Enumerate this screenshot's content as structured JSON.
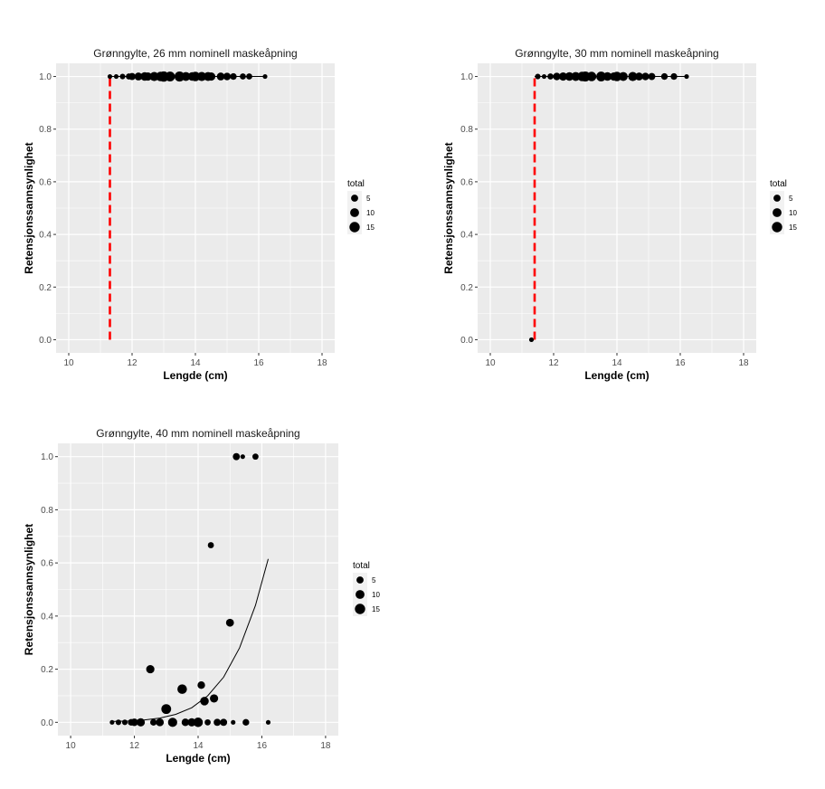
{
  "chart_data": [
    {
      "type": "scatter",
      "title": "Grønngylte, 26 mm nominell maskeåpning",
      "xlabel": "Lengde (cm)",
      "ylabel": "Retensjonssannsynlighet",
      "xlim": [
        9.6,
        18.4
      ],
      "ylim": [
        -0.05,
        1.05
      ],
      "xticks": [
        10,
        12,
        14,
        16,
        18
      ],
      "yticks": [
        0.0,
        0.2,
        0.4,
        0.6,
        0.8,
        1.0
      ],
      "points": [
        {
          "x": 11.3,
          "y": 1.0,
          "total": 1
        },
        {
          "x": 11.5,
          "y": 1.0,
          "total": 1
        },
        {
          "x": 11.7,
          "y": 1.0,
          "total": 2
        },
        {
          "x": 11.9,
          "y": 1.0,
          "total": 3
        },
        {
          "x": 12.0,
          "y": 1.0,
          "total": 5
        },
        {
          "x": 12.2,
          "y": 1.0,
          "total": 7
        },
        {
          "x": 12.4,
          "y": 1.0,
          "total": 9
        },
        {
          "x": 12.5,
          "y": 1.0,
          "total": 8
        },
        {
          "x": 12.7,
          "y": 1.0,
          "total": 11
        },
        {
          "x": 12.9,
          "y": 1.0,
          "total": 12
        },
        {
          "x": 13.0,
          "y": 1.0,
          "total": 15
        },
        {
          "x": 13.2,
          "y": 1.0,
          "total": 13
        },
        {
          "x": 13.5,
          "y": 1.0,
          "total": 14
        },
        {
          "x": 13.7,
          "y": 1.0,
          "total": 10
        },
        {
          "x": 13.9,
          "y": 1.0,
          "total": 9
        },
        {
          "x": 14.0,
          "y": 1.0,
          "total": 12
        },
        {
          "x": 14.2,
          "y": 1.0,
          "total": 11
        },
        {
          "x": 14.4,
          "y": 1.0,
          "total": 10
        },
        {
          "x": 14.5,
          "y": 1.0,
          "total": 8
        },
        {
          "x": 14.8,
          "y": 1.0,
          "total": 7
        },
        {
          "x": 15.0,
          "y": 1.0,
          "total": 6
        },
        {
          "x": 15.2,
          "y": 1.0,
          "total": 4
        },
        {
          "x": 15.5,
          "y": 1.0,
          "total": 3
        },
        {
          "x": 15.7,
          "y": 1.0,
          "total": 3
        },
        {
          "x": 16.2,
          "y": 1.0,
          "total": 1
        }
      ],
      "curve": [
        {
          "x": 11.3,
          "y": 1.0
        },
        {
          "x": 16.2,
          "y": 1.0
        }
      ],
      "dashed_line": {
        "x": 11.3,
        "y_from": 0.0,
        "y_to": 1.0,
        "color": "#ff0000"
      },
      "legend": {
        "title": "total",
        "entries": [
          "5",
          "10",
          "15"
        ],
        "sizes": [
          5,
          10,
          15
        ],
        "position": "right"
      }
    },
    {
      "type": "scatter",
      "title": "Grønngylte, 30 mm nominell maskeåpning",
      "xlabel": "Lengde (cm)",
      "ylabel": "Retensjonssannsynlighet",
      "xlim": [
        9.6,
        18.4
      ],
      "ylim": [
        -0.05,
        1.05
      ],
      "xticks": [
        10,
        12,
        14,
        16,
        18
      ],
      "yticks": [
        0.0,
        0.2,
        0.4,
        0.6,
        0.8,
        1.0
      ],
      "points": [
        {
          "x": 11.3,
          "y": 0.0,
          "total": 1
        },
        {
          "x": 11.5,
          "y": 1.0,
          "total": 2
        },
        {
          "x": 11.7,
          "y": 1.0,
          "total": 1
        },
        {
          "x": 11.9,
          "y": 1.0,
          "total": 3
        },
        {
          "x": 12.1,
          "y": 1.0,
          "total": 6
        },
        {
          "x": 12.3,
          "y": 1.0,
          "total": 8
        },
        {
          "x": 12.5,
          "y": 1.0,
          "total": 9
        },
        {
          "x": 12.7,
          "y": 1.0,
          "total": 10
        },
        {
          "x": 12.9,
          "y": 1.0,
          "total": 12
        },
        {
          "x": 13.0,
          "y": 1.0,
          "total": 14
        },
        {
          "x": 13.2,
          "y": 1.0,
          "total": 12
        },
        {
          "x": 13.5,
          "y": 1.0,
          "total": 13
        },
        {
          "x": 13.7,
          "y": 1.0,
          "total": 9
        },
        {
          "x": 13.9,
          "y": 1.0,
          "total": 8
        },
        {
          "x": 14.0,
          "y": 1.0,
          "total": 12
        },
        {
          "x": 14.2,
          "y": 1.0,
          "total": 10
        },
        {
          "x": 14.5,
          "y": 1.0,
          "total": 11
        },
        {
          "x": 14.7,
          "y": 1.0,
          "total": 7
        },
        {
          "x": 14.9,
          "y": 1.0,
          "total": 6
        },
        {
          "x": 15.1,
          "y": 1.0,
          "total": 5
        },
        {
          "x": 15.5,
          "y": 1.0,
          "total": 4
        },
        {
          "x": 15.8,
          "y": 1.0,
          "total": 4
        },
        {
          "x": 16.2,
          "y": 1.0,
          "total": 1
        }
      ],
      "curve": [
        {
          "x": 11.4,
          "y": 1.0
        },
        {
          "x": 16.2,
          "y": 1.0
        }
      ],
      "dashed_line": {
        "x": 11.4,
        "y_from": 0.0,
        "y_to": 1.0,
        "color": "#ff0000"
      },
      "legend": {
        "title": "total",
        "entries": [
          "5",
          "10",
          "15"
        ],
        "sizes": [
          5,
          10,
          15
        ],
        "position": "right"
      }
    },
    {
      "type": "scatter",
      "title": "Grønngylte, 40 mm nominell maskeåpning",
      "xlabel": "Lengde (cm)",
      "ylabel": "Retensjonssannsynlighet",
      "xlim": [
        9.6,
        18.4
      ],
      "ylim": [
        -0.05,
        1.05
      ],
      "xticks": [
        10,
        12,
        14,
        16,
        18
      ],
      "yticks": [
        0.0,
        0.2,
        0.4,
        0.6,
        0.8,
        1.0
      ],
      "points": [
        {
          "x": 11.3,
          "y": 0.0,
          "total": 1
        },
        {
          "x": 11.5,
          "y": 0.0,
          "total": 2
        },
        {
          "x": 11.7,
          "y": 0.0,
          "total": 2
        },
        {
          "x": 11.9,
          "y": 0.0,
          "total": 4
        },
        {
          "x": 12.0,
          "y": 0.0,
          "total": 6
        },
        {
          "x": 12.2,
          "y": 0.0,
          "total": 8
        },
        {
          "x": 12.5,
          "y": 0.2,
          "total": 8
        },
        {
          "x": 12.6,
          "y": 0.0,
          "total": 4
        },
        {
          "x": 12.8,
          "y": 0.0,
          "total": 7
        },
        {
          "x": 13.0,
          "y": 0.05,
          "total": 13
        },
        {
          "x": 13.2,
          "y": 0.0,
          "total": 11
        },
        {
          "x": 13.5,
          "y": 0.125,
          "total": 12
        },
        {
          "x": 13.6,
          "y": 0.0,
          "total": 6
        },
        {
          "x": 13.8,
          "y": 0.0,
          "total": 8
        },
        {
          "x": 14.0,
          "y": 0.0,
          "total": 12
        },
        {
          "x": 14.1,
          "y": 0.14,
          "total": 6
        },
        {
          "x": 14.2,
          "y": 0.08,
          "total": 9
        },
        {
          "x": 14.3,
          "y": 0.0,
          "total": 3
        },
        {
          "x": 14.4,
          "y": 0.6667,
          "total": 3
        },
        {
          "x": 14.5,
          "y": 0.09,
          "total": 8
        },
        {
          "x": 14.6,
          "y": 0.0,
          "total": 5
        },
        {
          "x": 14.8,
          "y": 0.0,
          "total": 5
        },
        {
          "x": 15.0,
          "y": 0.375,
          "total": 7
        },
        {
          "x": 15.1,
          "y": 0.0,
          "total": 1
        },
        {
          "x": 15.2,
          "y": 1.0,
          "total": 5
        },
        {
          "x": 15.4,
          "y": 1.0,
          "total": 1
        },
        {
          "x": 15.5,
          "y": 0.0,
          "total": 4
        },
        {
          "x": 15.8,
          "y": 1.0,
          "total": 3
        },
        {
          "x": 16.2,
          "y": 0.0,
          "total": 1
        }
      ],
      "curve": [
        {
          "x": 11.3,
          "y": 0.003
        },
        {
          "x": 11.8,
          "y": 0.005
        },
        {
          "x": 12.3,
          "y": 0.009
        },
        {
          "x": 12.8,
          "y": 0.016
        },
        {
          "x": 13.3,
          "y": 0.03
        },
        {
          "x": 13.8,
          "y": 0.055
        },
        {
          "x": 14.3,
          "y": 0.1
        },
        {
          "x": 14.8,
          "y": 0.17
        },
        {
          "x": 15.3,
          "y": 0.28
        },
        {
          "x": 15.8,
          "y": 0.44
        },
        {
          "x": 16.2,
          "y": 0.615
        }
      ],
      "legend": {
        "title": "total",
        "entries": [
          "5",
          "10",
          "15"
        ],
        "sizes": [
          5,
          10,
          15
        ],
        "position": "right"
      }
    }
  ]
}
